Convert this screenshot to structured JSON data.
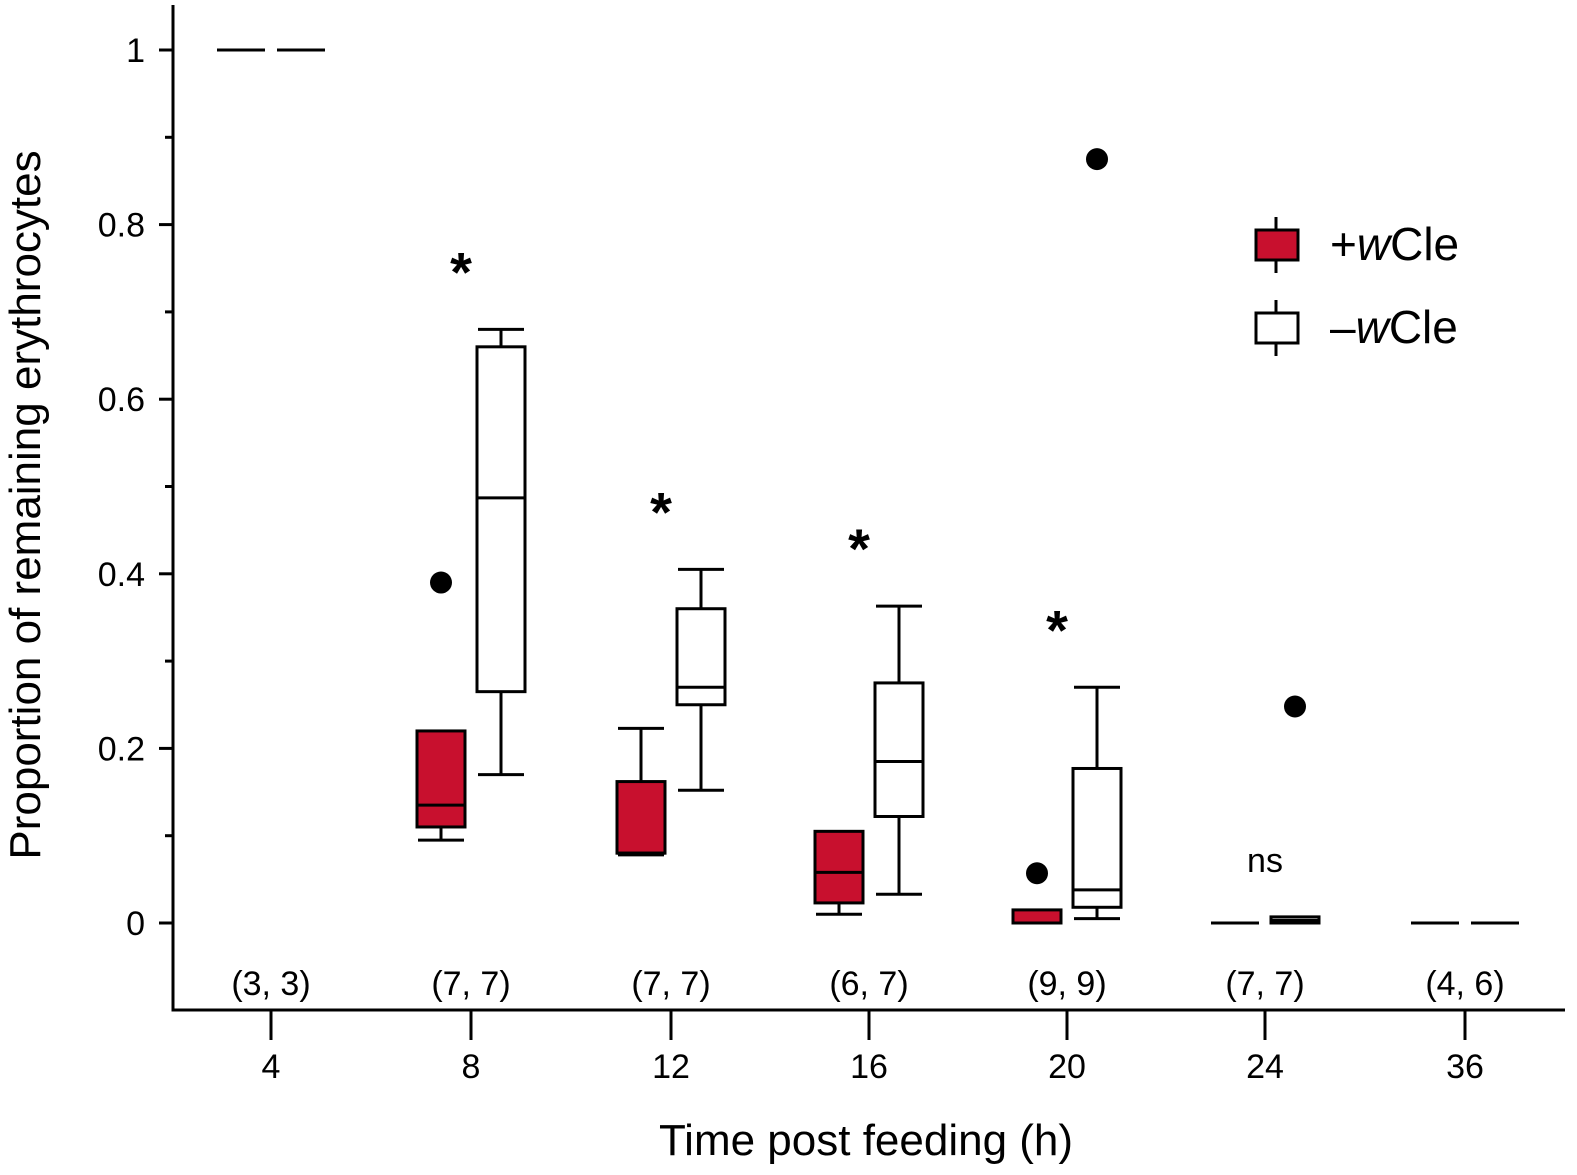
{
  "chart_data": {
    "type": "box",
    "xlabel": "Time post feeding (h)",
    "ylabel": "Proportion of remaining erythrocytes",
    "ylim": [
      -0.1,
      1.05
    ],
    "yticks": [
      0,
      0.2,
      0.4,
      0.6,
      0.8,
      1
    ],
    "ytick_labels": [
      "0",
      "0.2",
      "0.4",
      "0.6",
      "0.8",
      "1"
    ],
    "categories": [
      "4",
      "8",
      "12",
      "16",
      "20",
      "24",
      "36"
    ],
    "sample_sizes": [
      "(3, 3)",
      "(7, 7)",
      "(7, 7)",
      "(6, 7)",
      "(9, 9)",
      "(7, 7)",
      "(4, 6)"
    ],
    "significance": [
      "",
      "*",
      "*",
      "*",
      "*",
      "ns",
      ""
    ],
    "legend": {
      "position": "top-right"
    },
    "series": [
      {
        "name_prefix": "+",
        "name_italic": "w",
        "name_suffix": "Cle",
        "color": "#c8102e",
        "boxes": [
          {
            "min": 1.0,
            "q1": 1.0,
            "median": 1.0,
            "q3": 1.0,
            "max": 1.0,
            "outliers": []
          },
          {
            "min": 0.095,
            "q1": 0.11,
            "median": 0.135,
            "q3": 0.22,
            "max": 0.22,
            "outliers": [
              0.39
            ]
          },
          {
            "min": 0.078,
            "q1": 0.08,
            "median": 0.08,
            "q3": 0.162,
            "max": 0.223,
            "outliers": []
          },
          {
            "min": 0.01,
            "q1": 0.023,
            "median": 0.058,
            "q3": 0.105,
            "max": 0.105,
            "outliers": []
          },
          {
            "min": 0.0,
            "q1": 0.0,
            "median": 0.0,
            "q3": 0.015,
            "max": 0.015,
            "outliers": [
              0.057
            ]
          },
          {
            "min": 0.0,
            "q1": 0.0,
            "median": 0.0,
            "q3": 0.0,
            "max": 0.0,
            "outliers": []
          },
          {
            "min": 0.0,
            "q1": 0.0,
            "median": 0.0,
            "q3": 0.0,
            "max": 0.0,
            "outliers": []
          }
        ]
      },
      {
        "name_prefix": "–",
        "name_italic": "w",
        "name_suffix": "Cle",
        "color": "#ffffff",
        "boxes": [
          {
            "min": 1.0,
            "q1": 1.0,
            "median": 1.0,
            "q3": 1.0,
            "max": 1.0,
            "outliers": []
          },
          {
            "min": 0.17,
            "q1": 0.265,
            "median": 0.487,
            "q3": 0.66,
            "max": 0.68,
            "outliers": []
          },
          {
            "min": 0.152,
            "q1": 0.25,
            "median": 0.27,
            "q3": 0.36,
            "max": 0.405,
            "outliers": []
          },
          {
            "min": 0.033,
            "q1": 0.122,
            "median": 0.185,
            "q3": 0.275,
            "max": 0.363,
            "outliers": []
          },
          {
            "min": 0.005,
            "q1": 0.018,
            "median": 0.038,
            "q3": 0.177,
            "max": 0.27,
            "outliers": [
              0.875
            ]
          },
          {
            "min": 0.0,
            "q1": 0.0,
            "median": 0.003,
            "q3": 0.007,
            "max": 0.007,
            "outliers": [
              0.248
            ]
          },
          {
            "min": 0.0,
            "q1": 0.0,
            "median": 0.0,
            "q3": 0.0,
            "max": 0.0,
            "outliers": []
          }
        ]
      }
    ]
  }
}
